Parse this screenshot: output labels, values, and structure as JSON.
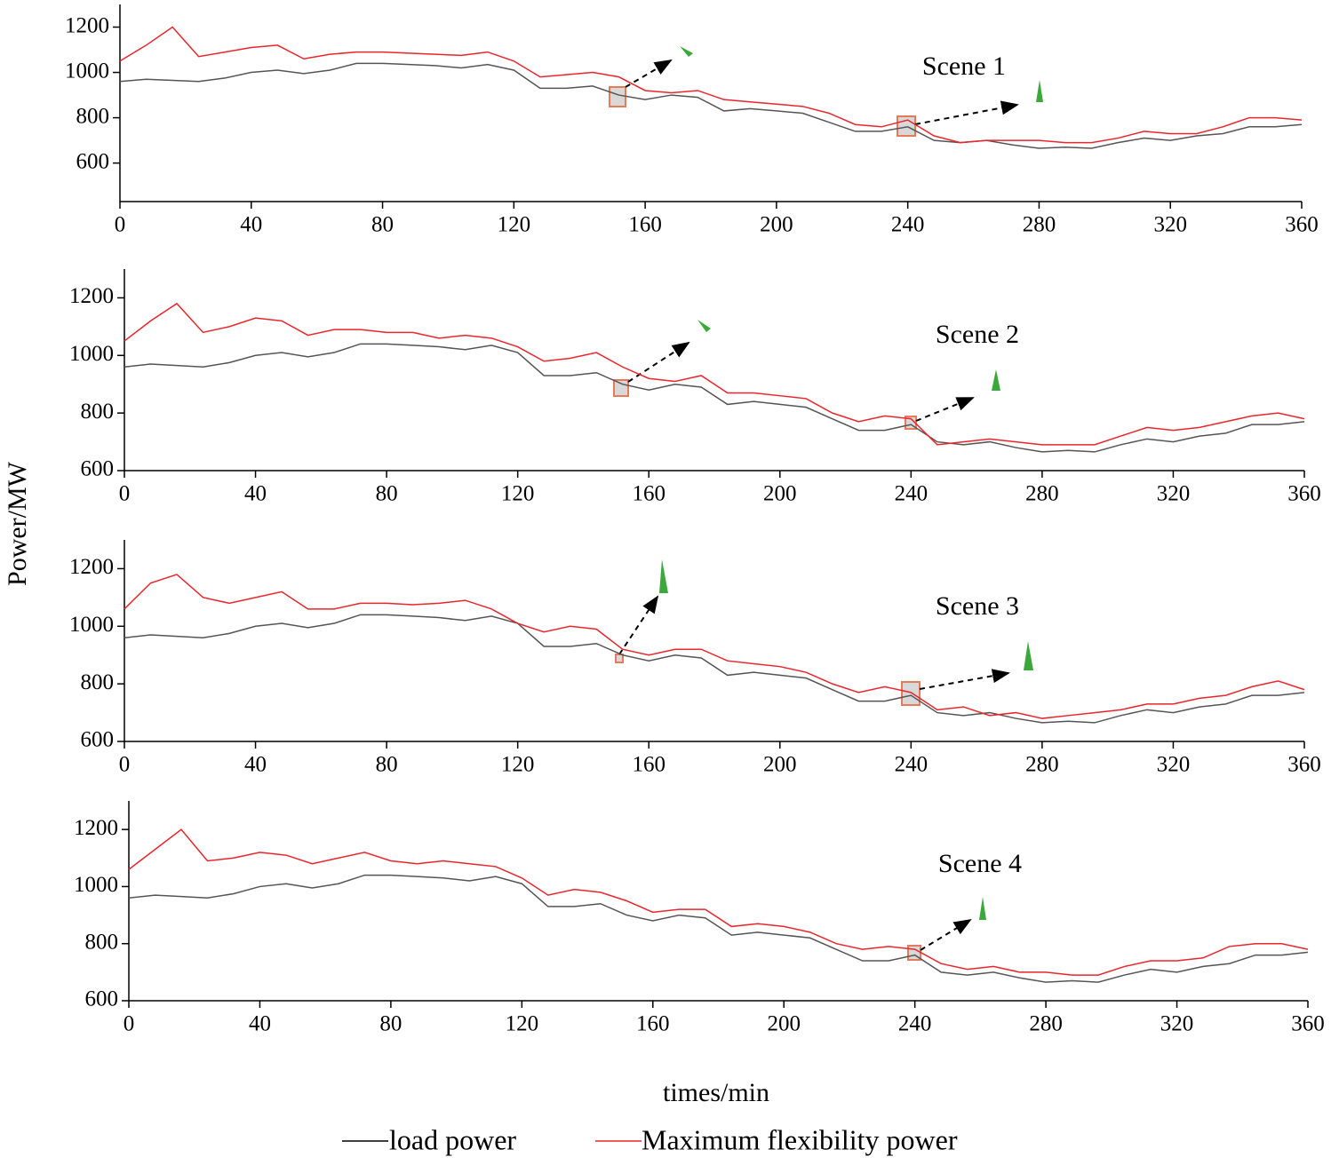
{
  "xlabel": "times/min",
  "ylabel": "Power/MW",
  "chart_data": [
    {
      "type": "line",
      "annotation": "Scene 1",
      "x": [
        0,
        8,
        16,
        24,
        32,
        40,
        48,
        56,
        64,
        72,
        80,
        88,
        96,
        104,
        112,
        120,
        128,
        136,
        144,
        152,
        160,
        168,
        176,
        184,
        192,
        200,
        208,
        216,
        224,
        232,
        240,
        248,
        256,
        264,
        272,
        280,
        288,
        296,
        304,
        312,
        320,
        328,
        336,
        344,
        352,
        360
      ],
      "xlim": [
        0,
        360
      ],
      "xticks": [
        0,
        40,
        80,
        120,
        160,
        200,
        240,
        280,
        320,
        360
      ],
      "ylim": [
        430,
        1300
      ],
      "yticks": [
        600,
        800,
        1000,
        1200
      ],
      "series": [
        {
          "name": "load power",
          "color": "#555555",
          "values": [
            960,
            970,
            965,
            960,
            975,
            1000,
            1010,
            995,
            1010,
            1040,
            1040,
            1035,
            1030,
            1020,
            1035,
            1010,
            930,
            930,
            940,
            900,
            880,
            900,
            890,
            830,
            840,
            830,
            820,
            780,
            740,
            740,
            760,
            700,
            690,
            700,
            680,
            665,
            670,
            665,
            690,
            710,
            700,
            720,
            730,
            760,
            760,
            770
          ]
        },
        {
          "name": "Maximum flexibility power",
          "color": "#e8262b",
          "values": [
            1050,
            1120,
            1200,
            1070,
            1090,
            1110,
            1120,
            1060,
            1080,
            1090,
            1090,
            1085,
            1080,
            1075,
            1090,
            1050,
            980,
            990,
            1000,
            980,
            920,
            910,
            920,
            880,
            870,
            860,
            850,
            820,
            770,
            760,
            790,
            720,
            690,
            700,
            700,
            700,
            690,
            690,
            710,
            740,
            730,
            730,
            760,
            800,
            800,
            790
          ]
        }
      ]
    },
    {
      "type": "line",
      "annotation": "Scene 2",
      "x": [
        0,
        8,
        16,
        24,
        32,
        40,
        48,
        56,
        64,
        72,
        80,
        88,
        96,
        104,
        112,
        120,
        128,
        136,
        144,
        152,
        160,
        168,
        176,
        184,
        192,
        200,
        208,
        216,
        224,
        232,
        240,
        248,
        256,
        264,
        272,
        280,
        288,
        296,
        304,
        312,
        320,
        328,
        336,
        344,
        352,
        360
      ],
      "xlim": [
        0,
        360
      ],
      "xticks": [
        0,
        40,
        80,
        120,
        160,
        200,
        240,
        280,
        320,
        360
      ],
      "ylim": [
        600,
        1300
      ],
      "yticks": [
        600,
        800,
        1000,
        1200
      ],
      "series": [
        {
          "name": "load power",
          "color": "#555555",
          "values": [
            960,
            970,
            965,
            960,
            975,
            1000,
            1010,
            995,
            1010,
            1040,
            1040,
            1035,
            1030,
            1020,
            1035,
            1010,
            930,
            930,
            940,
            900,
            880,
            900,
            890,
            830,
            840,
            830,
            820,
            780,
            740,
            740,
            760,
            700,
            690,
            700,
            680,
            665,
            670,
            665,
            690,
            710,
            700,
            720,
            730,
            760,
            760,
            770
          ]
        },
        {
          "name": "Maximum flexibility power",
          "color": "#e8262b",
          "values": [
            1050,
            1120,
            1180,
            1080,
            1100,
            1130,
            1120,
            1070,
            1090,
            1090,
            1080,
            1080,
            1060,
            1070,
            1060,
            1030,
            980,
            990,
            1010,
            960,
            920,
            910,
            930,
            870,
            870,
            860,
            850,
            800,
            770,
            790,
            780,
            690,
            700,
            710,
            700,
            690,
            690,
            690,
            720,
            750,
            740,
            750,
            770,
            790,
            800,
            780
          ]
        }
      ]
    },
    {
      "type": "line",
      "annotation": "Scene 3",
      "x": [
        0,
        8,
        16,
        24,
        32,
        40,
        48,
        56,
        64,
        72,
        80,
        88,
        96,
        104,
        112,
        120,
        128,
        136,
        144,
        152,
        160,
        168,
        176,
        184,
        192,
        200,
        208,
        216,
        224,
        232,
        240,
        248,
        256,
        264,
        272,
        280,
        288,
        296,
        304,
        312,
        320,
        328,
        336,
        344,
        352,
        360
      ],
      "xlim": [
        0,
        360
      ],
      "xticks": [
        0,
        40,
        80,
        120,
        160,
        200,
        240,
        280,
        320,
        360
      ],
      "ylim": [
        600,
        1300
      ],
      "yticks": [
        600,
        800,
        1000,
        1200
      ],
      "series": [
        {
          "name": "load power",
          "color": "#555555",
          "values": [
            960,
            970,
            965,
            960,
            975,
            1000,
            1010,
            995,
            1010,
            1040,
            1040,
            1035,
            1030,
            1020,
            1035,
            1010,
            930,
            930,
            940,
            900,
            880,
            900,
            890,
            830,
            840,
            830,
            820,
            780,
            740,
            740,
            760,
            700,
            690,
            700,
            680,
            665,
            670,
            665,
            690,
            710,
            700,
            720,
            730,
            760,
            760,
            770
          ]
        },
        {
          "name": "Maximum flexibility power",
          "color": "#e8262b",
          "values": [
            1060,
            1150,
            1180,
            1100,
            1080,
            1100,
            1120,
            1060,
            1060,
            1080,
            1080,
            1075,
            1080,
            1090,
            1060,
            1010,
            980,
            1000,
            990,
            920,
            900,
            920,
            920,
            880,
            870,
            860,
            840,
            800,
            770,
            790,
            770,
            710,
            720,
            690,
            700,
            680,
            690,
            700,
            710,
            730,
            730,
            750,
            760,
            790,
            810,
            780
          ]
        }
      ]
    },
    {
      "type": "line",
      "annotation": "Scene 4",
      "x": [
        0,
        8,
        16,
        24,
        32,
        40,
        48,
        56,
        64,
        72,
        80,
        88,
        96,
        104,
        112,
        120,
        128,
        136,
        144,
        152,
        160,
        168,
        176,
        184,
        192,
        200,
        208,
        216,
        224,
        232,
        240,
        248,
        256,
        264,
        272,
        280,
        288,
        296,
        304,
        312,
        320,
        328,
        336,
        344,
        352,
        360
      ],
      "xlim": [
        0,
        360
      ],
      "xticks": [
        0,
        40,
        80,
        120,
        160,
        200,
        240,
        280,
        320,
        360
      ],
      "ylim": [
        600,
        1300
      ],
      "yticks": [
        600,
        800,
        1000,
        1200
      ],
      "series": [
        {
          "name": "load power",
          "color": "#555555",
          "values": [
            960,
            970,
            965,
            960,
            975,
            1000,
            1010,
            995,
            1010,
            1040,
            1040,
            1035,
            1030,
            1020,
            1035,
            1010,
            930,
            930,
            940,
            900,
            880,
            900,
            890,
            830,
            840,
            830,
            820,
            780,
            740,
            740,
            760,
            700,
            690,
            700,
            680,
            665,
            670,
            665,
            690,
            710,
            700,
            720,
            730,
            760,
            760,
            770
          ]
        },
        {
          "name": "Maximum flexibility power",
          "color": "#e8262b",
          "values": [
            1060,
            1130,
            1200,
            1090,
            1100,
            1120,
            1110,
            1080,
            1100,
            1120,
            1090,
            1080,
            1090,
            1080,
            1070,
            1030,
            970,
            990,
            980,
            950,
            910,
            920,
            920,
            860,
            870,
            860,
            840,
            800,
            780,
            790,
            780,
            730,
            710,
            720,
            700,
            700,
            690,
            690,
            720,
            740,
            740,
            750,
            790,
            800,
            800,
            780
          ]
        }
      ]
    }
  ]
}
